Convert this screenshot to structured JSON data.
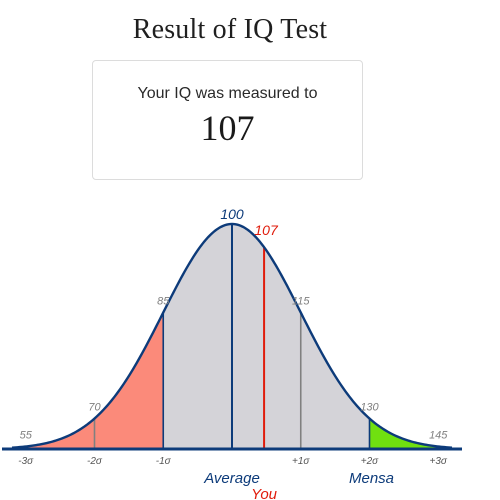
{
  "title": "Result of IQ Test",
  "result": {
    "caption": "Your IQ was measured to",
    "value": "107"
  },
  "chart_data": {
    "type": "area",
    "distribution": "normal",
    "mean": 100,
    "sd": 15,
    "xlim": [
      52,
      148
    ],
    "score": 107,
    "score_label": "107",
    "mean_label": "100",
    "sigma_ticks": [
      {
        "value": 55,
        "label": "-3σ"
      },
      {
        "value": 70,
        "label": "-2σ"
      },
      {
        "value": 85,
        "label": "-1σ"
      },
      {
        "value": 115,
        "label": "+1σ"
      },
      {
        "value": 130,
        "label": "+2σ"
      },
      {
        "value": 145,
        "label": "+3σ"
      }
    ],
    "score_labels": [
      {
        "value": 55,
        "label": "55"
      },
      {
        "value": 70,
        "label": "70"
      },
      {
        "value": 85,
        "label": "85"
      },
      {
        "value": 115,
        "label": "115"
      },
      {
        "value": 130,
        "label": "130"
      },
      {
        "value": 145,
        "label": "145"
      }
    ],
    "regions": [
      {
        "from": 52,
        "to": 85,
        "color": "#fb8a7a"
      },
      {
        "from": 85,
        "to": 130,
        "color": "#d4d3d8"
      },
      {
        "from": 130,
        "to": 148,
        "color": "#70e010"
      }
    ],
    "annotations": [
      {
        "value": 100,
        "label": "Average",
        "color": "#0d3b7a"
      },
      {
        "value": 130,
        "label": "Mensa",
        "color": "#0d3b7a"
      },
      {
        "value": 107,
        "label": "You",
        "color": "#e01b0b"
      }
    ],
    "colors": {
      "curve": "#0d3b7a",
      "score_line": "#e01b0b",
      "mean_line": "#0d3b7a",
      "sigma_line": "#808080",
      "baseline": "#0d3b7a"
    }
  }
}
